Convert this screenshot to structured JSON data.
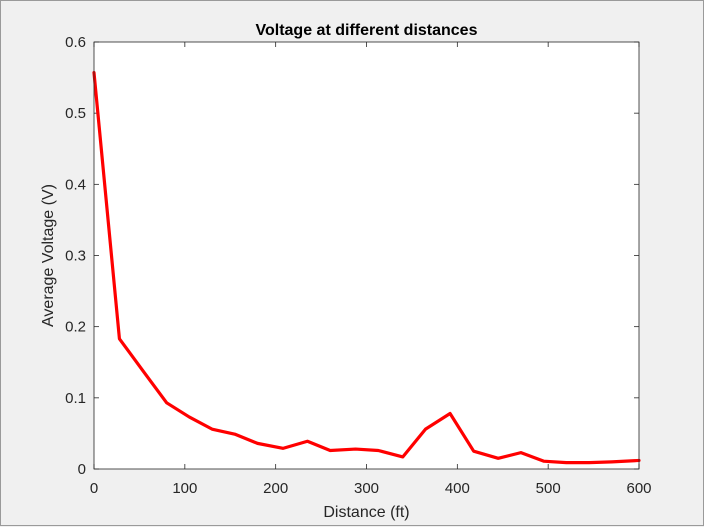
{
  "chart_data": {
    "type": "line",
    "title": "Voltage at different distances",
    "xlabel": "Distance (ft)",
    "ylabel": "Average Voltage (V)",
    "xlim": [
      0,
      600
    ],
    "ylim": [
      0,
      0.6
    ],
    "xticks": [
      0,
      100,
      200,
      300,
      400,
      500,
      600
    ],
    "yticks": [
      0,
      0.1,
      0.2,
      0.3,
      0.4,
      0.5,
      0.6
    ],
    "xtick_labels": [
      "0",
      "100",
      "200",
      "300",
      "400",
      "500",
      "600"
    ],
    "ytick_labels": [
      "0",
      "0.1",
      "0.2",
      "0.3",
      "0.4",
      "0.5",
      "0.6"
    ],
    "grid": false,
    "series": [
      {
        "color": "#ff0000",
        "x": [
          0,
          28,
          55,
          80,
          105,
          130,
          155,
          180,
          208,
          235,
          260,
          288,
          313,
          340,
          365,
          392,
          418,
          445,
          470,
          495,
          520,
          545,
          570,
          600
        ],
        "y": [
          0.557,
          0.183,
          0.136,
          0.093,
          0.073,
          0.056,
          0.049,
          0.036,
          0.029,
          0.039,
          0.026,
          0.028,
          0.026,
          0.017,
          0.056,
          0.078,
          0.025,
          0.015,
          0.023,
          0.011,
          0.009,
          0.009,
          0.01,
          0.012
        ]
      }
    ]
  }
}
